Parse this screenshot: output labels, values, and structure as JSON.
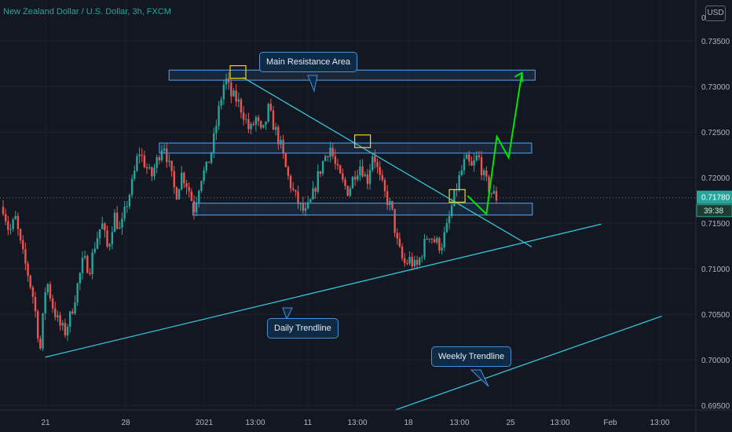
{
  "header": {
    "title": "New Zealand Dollar / U.S. Dollar, 3h, FXCM",
    "currency": "USD"
  },
  "colors": {
    "background": "#131722",
    "up": "#26a69a",
    "down": "#ef5350",
    "trendline": "#35c4d6",
    "zone": "#4a90d9",
    "forecast": "#00e600",
    "highlight": "#f5d90a"
  },
  "price_axis": {
    "ticks": [
      "0.73500",
      "0.73000",
      "0.72500",
      "0.72000",
      "0.71500",
      "0.71000",
      "0.70500",
      "0.70000",
      "0.69500"
    ],
    "top_tick": "0"
  },
  "time_axis": {
    "labels": [
      "21",
      "28",
      "2021",
      "13:00",
      "11",
      "13:00",
      "18",
      "13:00",
      "25",
      "13:00",
      "Feb",
      "13:00"
    ]
  },
  "current_price": {
    "value": "0.71780",
    "countdown": "39:38"
  },
  "annotations": {
    "main_resistance": "Main Resistance Area",
    "daily_trendline": "Daily Trendline",
    "weekly_trendline": "Weekly Trendline"
  },
  "chart_data": {
    "type": "candlestick",
    "title": "New Zealand Dollar / U.S. Dollar, 3h, FXCM",
    "y_range": [
      0.6945,
      0.7395
    ],
    "price_path": [
      0.7168,
      0.714,
      0.7155,
      0.712,
      0.7095,
      0.7065,
      0.701,
      0.709,
      0.706,
      0.704,
      0.703,
      0.705,
      0.708,
      0.711,
      0.71,
      0.713,
      0.715,
      0.712,
      0.716,
      0.714,
      0.717,
      0.7195,
      0.723,
      0.7215,
      0.72,
      0.722,
      0.724,
      0.721,
      0.718,
      0.7205,
      0.719,
      0.7165,
      0.72,
      0.721,
      0.7235,
      0.7275,
      0.731,
      0.729,
      0.7285,
      0.727,
      0.725,
      0.7265,
      0.7245,
      0.7275,
      0.7255,
      0.7235,
      0.7205,
      0.7185,
      0.717,
      0.716,
      0.7175,
      0.72,
      0.722,
      0.7235,
      0.721,
      0.7195,
      0.7185,
      0.7205,
      0.7215,
      0.7195,
      0.723,
      0.72,
      0.718,
      0.7165,
      0.7125,
      0.7105,
      0.711,
      0.71,
      0.712,
      0.714,
      0.713,
      0.7125,
      0.7145,
      0.7175,
      0.72,
      0.722,
      0.721,
      0.7225,
      0.72,
      0.7185,
      0.7178
    ],
    "ohlc_note": "",
    "zones": [
      {
        "top": 0.7318,
        "bottom": 0.7307,
        "x_start": 0.243,
        "x_end": 0.769
      },
      {
        "top": 0.7238,
        "bottom": 0.7227,
        "x_start": 0.229,
        "x_end": 0.764
      },
      {
        "top": 0.7172,
        "bottom": 0.7159,
        "x_start": 0.277,
        "x_end": 0.765
      }
    ],
    "trendlines": [
      {
        "name": "Daily Trendline",
        "from": [
          0.065,
          0.7003
        ],
        "to": [
          0.864,
          0.7149
        ]
      },
      {
        "name": "Weekly Trendline",
        "from": [
          0.568,
          0.6945
        ],
        "to": [
          0.951,
          0.7048
        ]
      },
      {
        "name": "",
        "from": [
          0.349,
          0.731
        ],
        "to": [
          0.764,
          0.7124
        ]
      }
    ],
    "highlight_boxes": [
      {
        "x": 0.342,
        "price": 0.7316
      },
      {
        "x": 0.521,
        "price": 0.724
      },
      {
        "x": 0.657,
        "price": 0.718
      }
    ],
    "forecast_path": [
      [
        0.672,
        0.718
      ],
      [
        0.699,
        0.716
      ],
      [
        0.714,
        0.7245
      ],
      [
        0.731,
        0.7222
      ],
      [
        0.75,
        0.7315
      ]
    ],
    "current_value": 0.7178
  }
}
